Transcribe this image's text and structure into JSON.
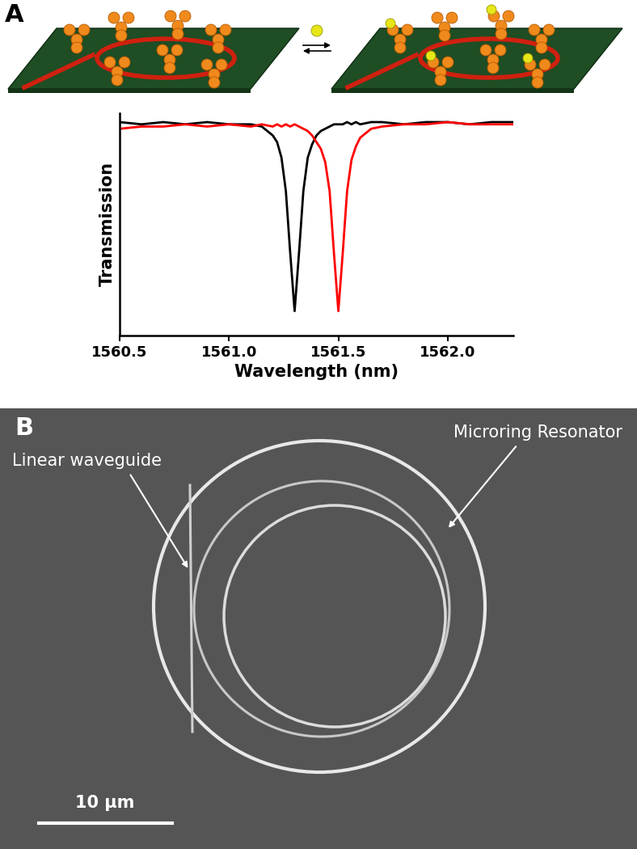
{
  "panel_labels": [
    "A",
    "B"
  ],
  "chart_data": {
    "type": "line",
    "xlabel": "Wavelength (nm)",
    "ylabel": "Transmission",
    "x": [
      1560.5,
      1560.6,
      1560.7,
      1560.8,
      1560.9,
      1561.0,
      1561.1,
      1561.15,
      1561.2,
      1561.22,
      1561.24,
      1561.26,
      1561.28,
      1561.3,
      1561.32,
      1561.34,
      1561.36,
      1561.38,
      1561.4,
      1561.42,
      1561.44,
      1561.46,
      1561.48,
      1561.5,
      1561.52,
      1561.54,
      1561.56,
      1561.58,
      1561.6,
      1561.65,
      1561.7,
      1561.8,
      1561.9,
      1562.0,
      1562.1,
      1562.2,
      1562.3
    ],
    "xlim": [
      1560.5,
      1562.3
    ],
    "xticks": [
      1560.5,
      1561.0,
      1561.5,
      1562.0
    ],
    "ylim": [
      0,
      1
    ],
    "tick_labels": "x",
    "series": [
      {
        "color": "#000000",
        "values": [
          0.96,
          0.95,
          0.96,
          0.95,
          0.96,
          0.95,
          0.95,
          0.94,
          0.9,
          0.87,
          0.8,
          0.65,
          0.37,
          0.11,
          0.37,
          0.65,
          0.8,
          0.86,
          0.9,
          0.92,
          0.93,
          0.94,
          0.95,
          0.95,
          0.95,
          0.96,
          0.95,
          0.96,
          0.95,
          0.96,
          0.96,
          0.95,
          0.96,
          0.96,
          0.95,
          0.96,
          0.96
        ]
      },
      {
        "color": "#ff0000",
        "values": [
          0.93,
          0.94,
          0.94,
          0.95,
          0.94,
          0.95,
          0.94,
          0.95,
          0.94,
          0.95,
          0.94,
          0.95,
          0.94,
          0.95,
          0.94,
          0.93,
          0.92,
          0.9,
          0.87,
          0.84,
          0.78,
          0.65,
          0.37,
          0.11,
          0.37,
          0.65,
          0.79,
          0.85,
          0.89,
          0.93,
          0.94,
          0.95,
          0.95,
          0.96,
          0.95,
          0.95,
          0.95
        ]
      }
    ]
  },
  "micrograph": {
    "annotations": [
      "Linear waveguide",
      "Microring Resonator"
    ],
    "scale_bar": "10 μm"
  }
}
